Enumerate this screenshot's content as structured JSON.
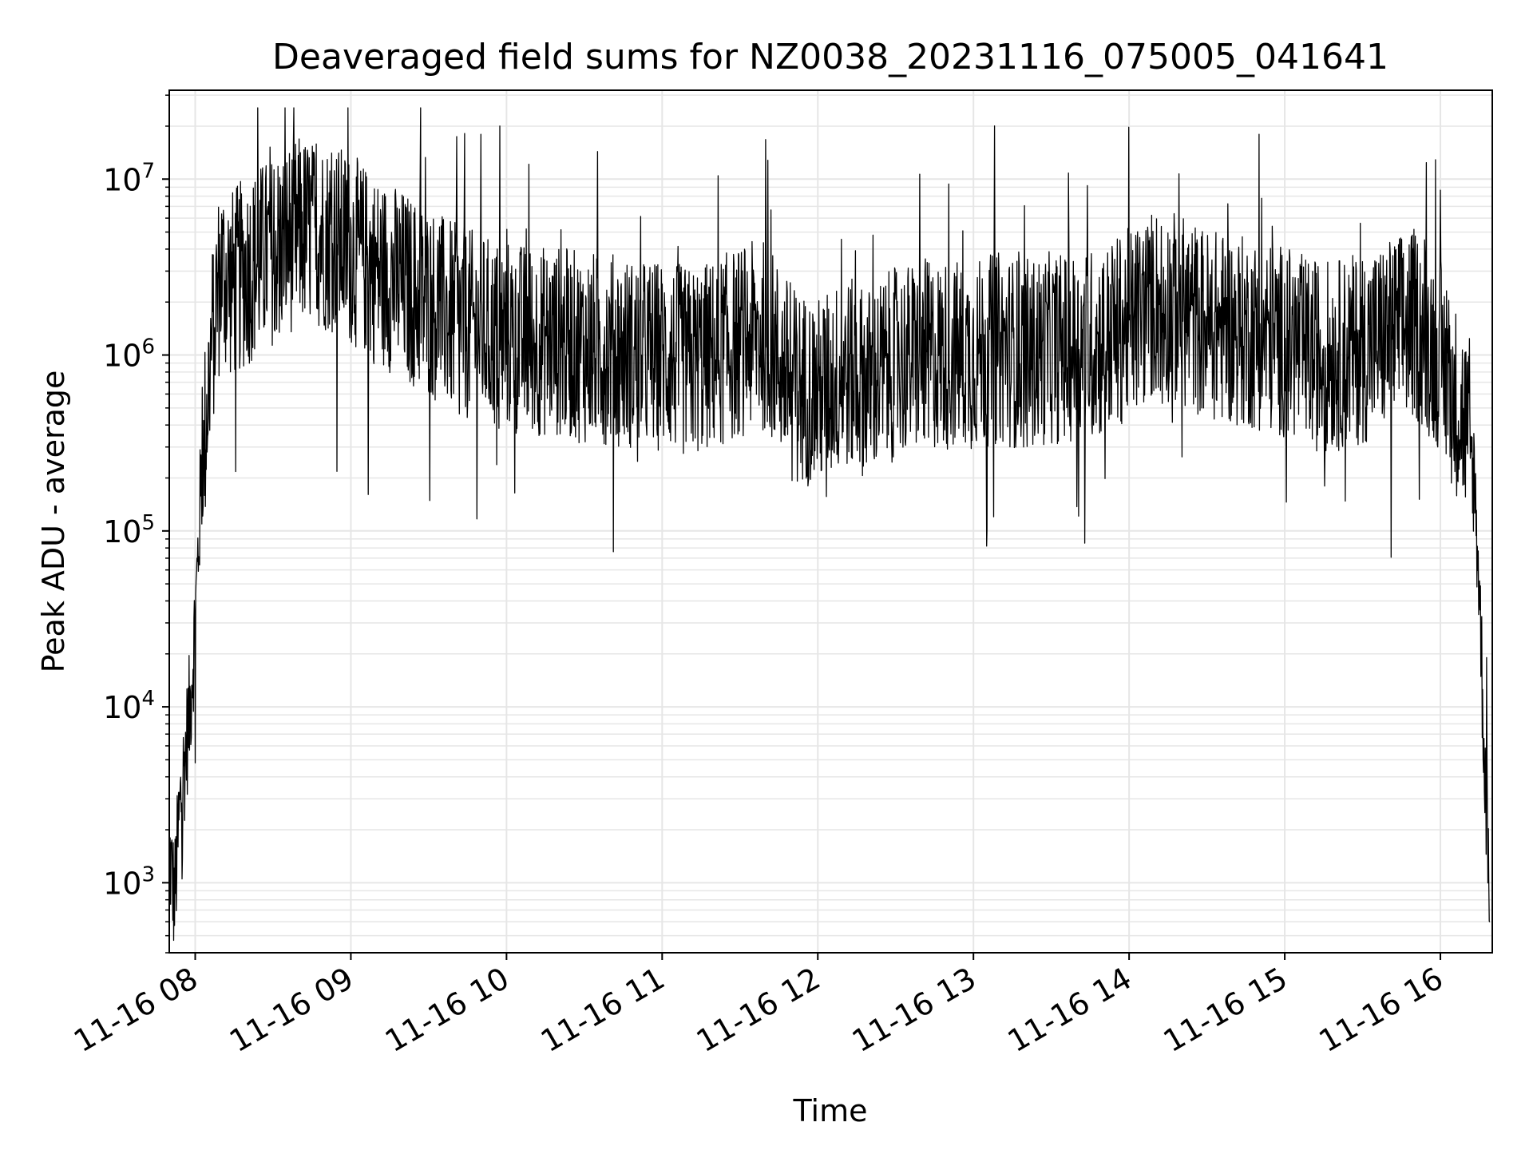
{
  "chart_data": {
    "type": "line",
    "title": "Deaveraged field sums for NZ0038_20231116_075005_041641",
    "xlabel": "Time",
    "ylabel": "Peak ADU - average",
    "y_scale": "log",
    "ylim": [
      400,
      32000000
    ],
    "xlim": [
      "2023-11-16 07:50",
      "2023-11-16 16:20"
    ],
    "grid": true,
    "line_color": "#000000",
    "grid_color": "#e6e6e6",
    "x_tick_labels": [
      "11-16 08",
      "11-16 09",
      "11-16 10",
      "11-16 11",
      "11-16 12",
      "11-16 13",
      "11-16 14",
      "11-16 15",
      "11-16 16"
    ],
    "y_tick_labels": [
      {
        "base": "10",
        "exp": "3",
        "value": 1000
      },
      {
        "base": "10",
        "exp": "4",
        "value": 10000
      },
      {
        "base": "10",
        "exp": "5",
        "value": 100000
      },
      {
        "base": "10",
        "exp": "6",
        "value": 1000000
      },
      {
        "base": "10",
        "exp": "7",
        "value": 10000000
      }
    ],
    "series": [
      {
        "x": [
          "2023-11-16 07:50",
          "2023-11-16 07:52",
          "2023-11-16 07:54",
          "2023-11-16 07:56",
          "2023-11-16 07:58",
          "2023-11-16 08:00",
          "2023-11-16 08:02",
          "2023-11-16 08:04",
          "2023-11-16 08:06",
          "2023-11-16 08:08",
          "2023-11-16 08:10",
          "2023-11-16 08:14",
          "2023-11-16 08:20",
          "2023-11-16 08:25",
          "2023-11-16 08:30",
          "2023-11-16 08:35",
          "2023-11-16 08:40",
          "2023-11-16 08:45",
          "2023-11-16 08:50",
          "2023-11-16 08:55",
          "2023-11-16 09:00",
          "2023-11-16 09:05",
          "2023-11-16 09:10",
          "2023-11-16 09:15",
          "2023-11-16 09:20",
          "2023-11-16 09:25",
          "2023-11-16 09:30",
          "2023-11-16 09:35",
          "2023-11-16 09:40",
          "2023-11-16 09:45",
          "2023-11-16 09:50",
          "2023-11-16 09:55",
          "2023-11-16 10:00",
          "2023-11-16 10:10",
          "2023-11-16 10:20",
          "2023-11-16 10:30",
          "2023-11-16 10:40",
          "2023-11-16 10:50",
          "2023-11-16 11:00",
          "2023-11-16 11:10",
          "2023-11-16 11:20",
          "2023-11-16 11:30",
          "2023-11-16 11:40",
          "2023-11-16 11:50",
          "2023-11-16 12:00",
          "2023-11-16 12:10",
          "2023-11-16 12:20",
          "2023-11-16 12:30",
          "2023-11-16 12:40",
          "2023-11-16 12:50",
          "2023-11-16 13:00",
          "2023-11-16 13:10",
          "2023-11-16 13:20",
          "2023-11-16 13:30",
          "2023-11-16 13:40",
          "2023-11-16 13:50",
          "2023-11-16 14:00",
          "2023-11-16 14:10",
          "2023-11-16 14:20",
          "2023-11-16 14:30",
          "2023-11-16 14:40",
          "2023-11-16 14:50",
          "2023-11-16 15:00",
          "2023-11-16 15:10",
          "2023-11-16 15:20",
          "2023-11-16 15:30",
          "2023-11-16 15:40",
          "2023-11-16 15:50",
          "2023-11-16 16:00",
          "2023-11-16 16:05",
          "2023-11-16 16:10",
          "2023-11-16 16:13",
          "2023-11-16 16:15",
          "2023-11-16 16:17",
          "2023-11-16 16:19"
        ],
        "values": [
          1500,
          800,
          2500,
          5000,
          10000,
          30000,
          150000,
          400000,
          1000000,
          2000000,
          3000000,
          2500000,
          3000000,
          3500000,
          4000000,
          4500000,
          5000000,
          5000000,
          4800000,
          4500000,
          4000000,
          3500000,
          3000000,
          2800000,
          2500000,
          2200000,
          2000000,
          1800000,
          1600000,
          1500000,
          1400000,
          1300000,
          1300000,
          1200000,
          1200000,
          1100000,
          1100000,
          1000000,
          1000000,
          900000,
          1000000,
          1200000,
          1300000,
          700000,
          600000,
          800000,
          700000,
          900000,
          1000000,
          1000000,
          1000000,
          1100000,
          1000000,
          1100000,
          1100000,
          1200000,
          1500000,
          2000000,
          1800000,
          1500000,
          1400000,
          1300000,
          1200000,
          1000000,
          1000000,
          1100000,
          1300000,
          1500000,
          1000000,
          600000,
          400000,
          200000,
          50000,
          5000,
          1000
        ]
      }
    ]
  }
}
